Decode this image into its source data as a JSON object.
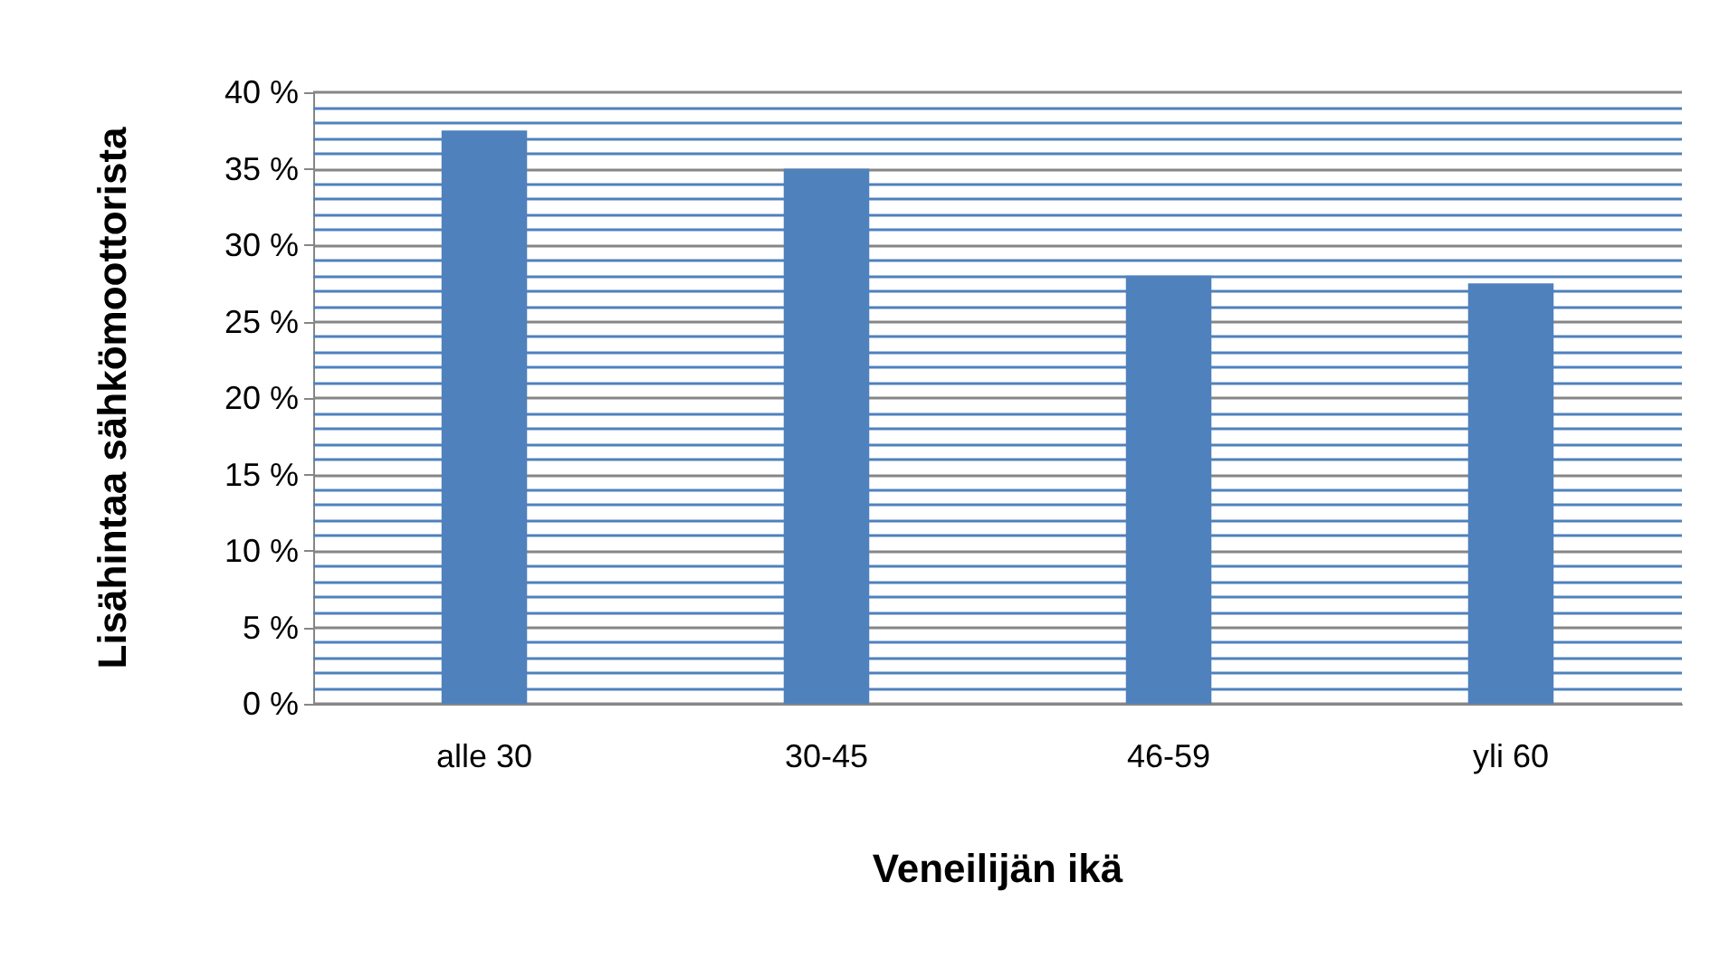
{
  "chart_data": {
    "type": "bar",
    "xlabel": "Veneilijän ikä",
    "ylabel": "Lisähintaa sähkömoottorista",
    "categories": [
      "alle 30",
      "30-45",
      "46-59",
      "yli 60"
    ],
    "values": [
      37.5,
      35,
      28,
      27.5
    ],
    "color": "#4f81bd",
    "ylim": [
      0,
      40
    ],
    "yticks": [
      {
        "value": 0,
        "label": "0 %"
      },
      {
        "value": 1,
        "label": null
      },
      {
        "value": 2,
        "label": null
      },
      {
        "value": 3,
        "label": null
      },
      {
        "value": 4,
        "label": null
      },
      {
        "value": 5,
        "label": "5 %"
      },
      {
        "value": 6,
        "label": null
      },
      {
        "value": 7,
        "label": null
      },
      {
        "value": 8,
        "label": null
      },
      {
        "value": 9,
        "label": null
      },
      {
        "value": 10,
        "label": "10 %"
      },
      {
        "value": 11,
        "label": null
      },
      {
        "value": 12,
        "label": null
      },
      {
        "value": 13,
        "label": null
      },
      {
        "value": 14,
        "label": null
      },
      {
        "value": 15,
        "label": "15 %"
      },
      {
        "value": 16,
        "label": null
      },
      {
        "value": 17,
        "label": null
      },
      {
        "value": 18,
        "label": null
      },
      {
        "value": 19,
        "label": null
      },
      {
        "value": 20,
        "label": "20 %"
      },
      {
        "value": 21,
        "label": null
      },
      {
        "value": 22,
        "label": null
      },
      {
        "value": 23,
        "label": null
      },
      {
        "value": 24,
        "label": null
      },
      {
        "value": 25,
        "label": "25 %"
      },
      {
        "value": 26,
        "label": null
      },
      {
        "value": 27,
        "label": null
      },
      {
        "value": 28,
        "label": null
      },
      {
        "value": 29,
        "label": null
      },
      {
        "value": 30,
        "label": "30 %"
      },
      {
        "value": 31,
        "label": null
      },
      {
        "value": 32,
        "label": null
      },
      {
        "value": 33,
        "label": null
      },
      {
        "value": 34,
        "label": null
      },
      {
        "value": 35,
        "label": "35 %"
      },
      {
        "value": 36,
        "label": null
      },
      {
        "value": 37,
        "label": null
      },
      {
        "value": 38,
        "label": null
      },
      {
        "value": 39,
        "label": null
      },
      {
        "value": 40,
        "label": "40 %"
      }
    ],
    "grid": true
  }
}
